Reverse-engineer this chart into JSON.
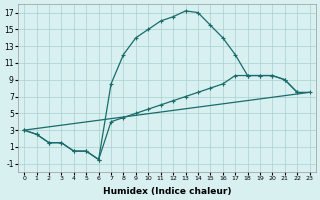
{
  "xlabel": "Humidex (Indice chaleur)",
  "bg_color": "#d8f0f0",
  "grid_color": "#aacfcf",
  "line_color": "#1a6b6b",
  "xlim": [
    -0.5,
    23.5
  ],
  "ylim": [
    -2,
    18
  ],
  "xticks": [
    0,
    1,
    2,
    3,
    4,
    5,
    6,
    7,
    8,
    9,
    10,
    11,
    12,
    13,
    14,
    15,
    16,
    17,
    18,
    19,
    20,
    21,
    22,
    23
  ],
  "yticks": [
    -1,
    1,
    3,
    5,
    7,
    9,
    11,
    13,
    15,
    17
  ],
  "curve1_x": [
    0,
    1,
    2,
    3,
    4,
    5,
    6,
    7,
    8,
    9,
    10,
    11,
    12,
    13,
    14,
    15,
    16,
    17,
    18,
    19,
    20,
    21,
    22
  ],
  "curve1_y": [
    3,
    2.5,
    1.5,
    1.5,
    0.5,
    0.5,
    -0.5,
    8.5,
    12,
    14,
    15,
    16,
    16.5,
    17.2,
    17.0,
    15.5,
    14,
    12,
    9.5,
    9.5,
    9.5,
    9,
    7.5
  ],
  "curve2_x": [
    0,
    1,
    2,
    3,
    4,
    5,
    6,
    7,
    8,
    9,
    10,
    11,
    12,
    13,
    14,
    15,
    16,
    17,
    18,
    19,
    20,
    21,
    22,
    23
  ],
  "curve2_y": [
    3,
    2.5,
    1.5,
    1.5,
    0.5,
    0.5,
    -0.5,
    4,
    4.5,
    5,
    5.5,
    6,
    6.5,
    7,
    7.5,
    8,
    8.5,
    9.5,
    9.5,
    9.5,
    9.5,
    9,
    7.5,
    7.5
  ],
  "curve3_x": [
    0,
    23
  ],
  "curve3_y": [
    3,
    7.5
  ]
}
